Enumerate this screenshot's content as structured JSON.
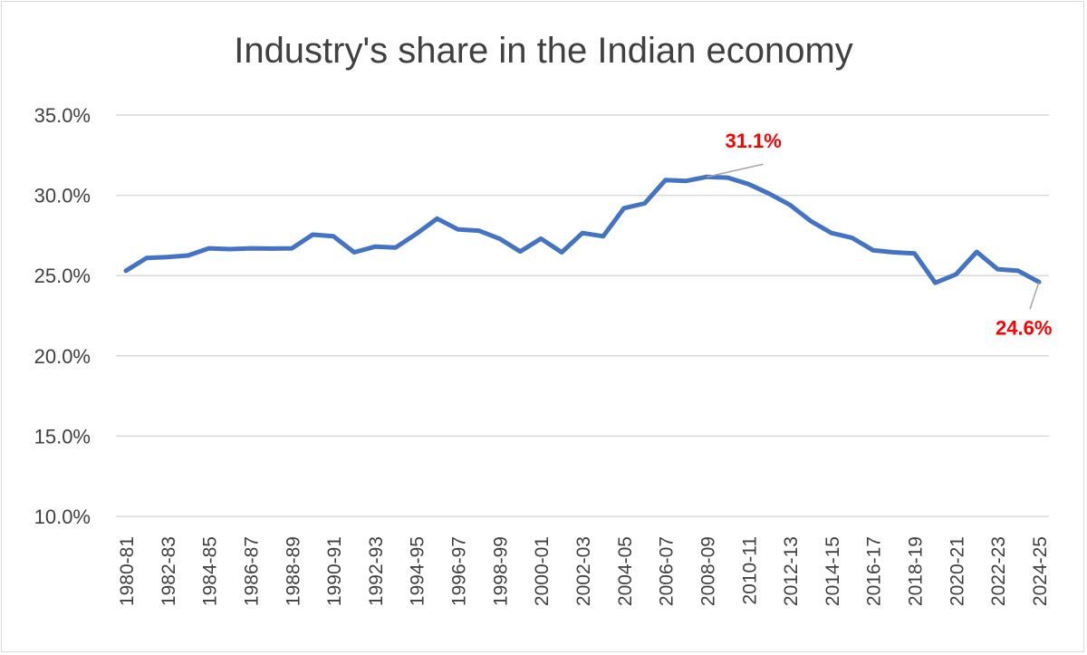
{
  "chart_data": {
    "type": "line",
    "title": "Industry's share in the Indian economy",
    "xlabel": "",
    "ylabel": "",
    "ylim": [
      0.1,
      0.35
    ],
    "yticks": [
      {
        "value": 0.1,
        "label": "10.0%"
      },
      {
        "value": 0.15,
        "label": "15.0%"
      },
      {
        "value": 0.2,
        "label": "20.0%"
      },
      {
        "value": 0.25,
        "label": "25.0%"
      },
      {
        "value": 0.3,
        "label": "30.0%"
      },
      {
        "value": 0.35,
        "label": "35.0%"
      }
    ],
    "grid": true,
    "legend": "none",
    "line_color": "#4472c4",
    "label_color": "#ff0000",
    "x": [
      "1980-81",
      "1981-82",
      "1982-83",
      "1983-84",
      "1984-85",
      "1985-86",
      "1986-87",
      "1987-88",
      "1988-89",
      "1989-90",
      "1990-91",
      "1991-92",
      "1992-93",
      "1993-94",
      "1994-95",
      "1995-96",
      "1996-97",
      "1997-98",
      "1998-99",
      "1999-00",
      "2000-01",
      "2001-02",
      "2002-03",
      "2003-04",
      "2004-05",
      "2005-06",
      "2006-07",
      "2007-08",
      "2008-09",
      "2009-10",
      "2010-11",
      "2011-12",
      "2012-13",
      "2013-14",
      "2014-15",
      "2015-16",
      "2016-17",
      "2017-18",
      "2018-19",
      "2019-20",
      "2020-21",
      "2021-22",
      "2022-23",
      "2023-24",
      "2024-25"
    ],
    "x_tick_labels": [
      "1980-81",
      "1982-83",
      "1984-85",
      "1986-87",
      "1988-89",
      "1990-91",
      "1992-93",
      "1994-95",
      "1996-97",
      "1998-99",
      "2000-01",
      "2002-03",
      "2004-05",
      "2006-07",
      "2008-09",
      "2010-11",
      "2012-13",
      "2014-15",
      "2016-17",
      "2018-19",
      "2020-21",
      "2022-23",
      "2024-25"
    ],
    "series": [
      {
        "values": [
          0.253,
          0.261,
          0.2615,
          0.2625,
          0.267,
          0.2665,
          0.267,
          0.2668,
          0.267,
          0.2755,
          0.2745,
          0.2645,
          0.268,
          0.2675,
          0.276,
          0.2855,
          0.2788,
          0.278,
          0.273,
          0.265,
          0.273,
          0.2645,
          0.2765,
          0.2745,
          0.292,
          0.295,
          0.3095,
          0.309,
          0.3115,
          0.311,
          0.307,
          0.301,
          0.294,
          0.284,
          0.2765,
          0.2735,
          0.2658,
          0.2645,
          0.2638,
          0.2455,
          0.2508,
          0.2648,
          0.254,
          0.253,
          0.246
        ]
      }
    ],
    "annotations": [
      {
        "text": "31.1%",
        "x": "2008-09"
      },
      {
        "text": "24.6%",
        "x": "2024-25"
      }
    ]
  }
}
